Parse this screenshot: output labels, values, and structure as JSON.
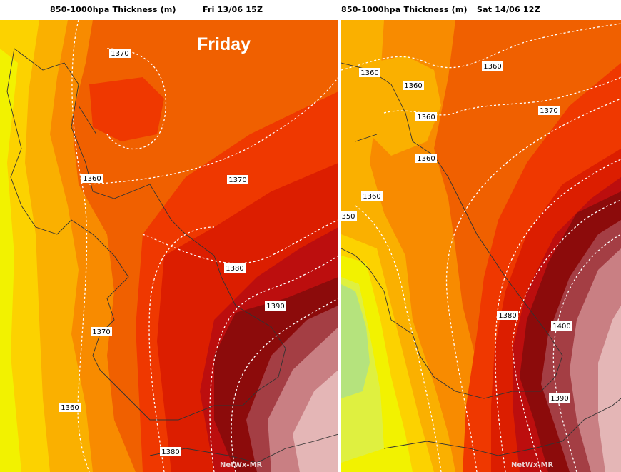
{
  "panels": [
    {
      "field_title": "850-1000hpa Thickness (m)",
      "valid_time": "Fri 13/06 15Z",
      "overlay_label": "Friday",
      "credit": "NetWx-MR",
      "contour_labels": [
        "1370",
        "1360",
        "1370",
        "1380",
        "1390",
        "1370",
        "1360",
        "1380"
      ]
    },
    {
      "field_title": "850-1000hpa Thickness (m)",
      "valid_time": "Sat 14/06 12Z",
      "credit": "NetWx-MR",
      "contour_labels": [
        "1360",
        "1360",
        "1360",
        "1360",
        "1360",
        "1370",
        "1360",
        "350",
        "1380",
        "1400",
        "1390"
      ]
    }
  ],
  "colors": {
    "yellow": "#f2f200",
    "yellow_orange": "#fcd200",
    "light_orange": "#fab000",
    "orange": "#f88b00",
    "dark_orange": "#f06000",
    "red_orange": "#ef3800",
    "red": "#dc1e00",
    "crimson": "#bc0e0e",
    "dark_red": "#8c0b0b",
    "maroon": "#a43e44",
    "dusty_rose": "#c97f83",
    "pink": "#e4b6b6",
    "green": "#b5e37d",
    "lime": "#dff040"
  }
}
